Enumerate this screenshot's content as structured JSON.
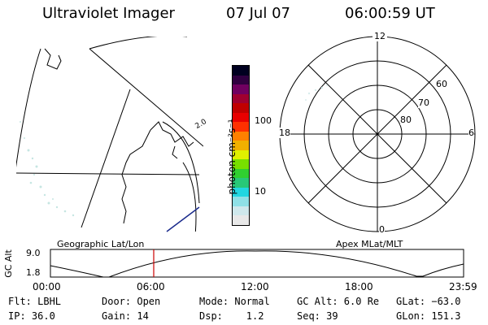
{
  "header": {
    "title": "Ultraviolet Imager",
    "date": "07 Jul 07",
    "time": "06:00:59 UT"
  },
  "colorbar": {
    "unit_label": "photon cm⁻²s⁻¹",
    "tick_labels": [
      "100",
      "10"
    ],
    "colors": [
      "#e8e8e8",
      "#cfe8ec",
      "#8fe0e6",
      "#22d6e0",
      "#28c878",
      "#30d030",
      "#78e000",
      "#e0f000",
      "#f0b000",
      "#ff8000",
      "#ff3000",
      "#e80000",
      "#c00000",
      "#a00030",
      "#700060",
      "#300040",
      "#000020"
    ]
  },
  "left_panel": {
    "caption": "Geographic Lat/Lon",
    "partial_label": "2.0"
  },
  "right_panel": {
    "caption": "Apex MLat/MLT",
    "mlt_labels": {
      "top": "12",
      "bottom": "0",
      "left": "18",
      "right": "6"
    },
    "lat_labels": [
      "60",
      "70",
      "80"
    ]
  },
  "altitude_plot": {
    "axis_label": "GC Alt",
    "y_ticks": [
      "9.0",
      "1.8"
    ],
    "x_ticks": [
      "00:00",
      "06:00",
      "12:00",
      "18:00",
      "23:59"
    ],
    "marker_time": "06:00",
    "marker_color": "#cc0000"
  },
  "footer": {
    "row1": [
      "Flt: LBHL",
      "Door: Open",
      "Mode: Normal",
      "GC Alt: 6.0 Re",
      "GLat: −63.0"
    ],
    "row2": [
      "IP: 36.0",
      "Gain: 14",
      "Dsp:    1.2",
      "Seq: 39",
      "GLon: 151.3"
    ]
  }
}
